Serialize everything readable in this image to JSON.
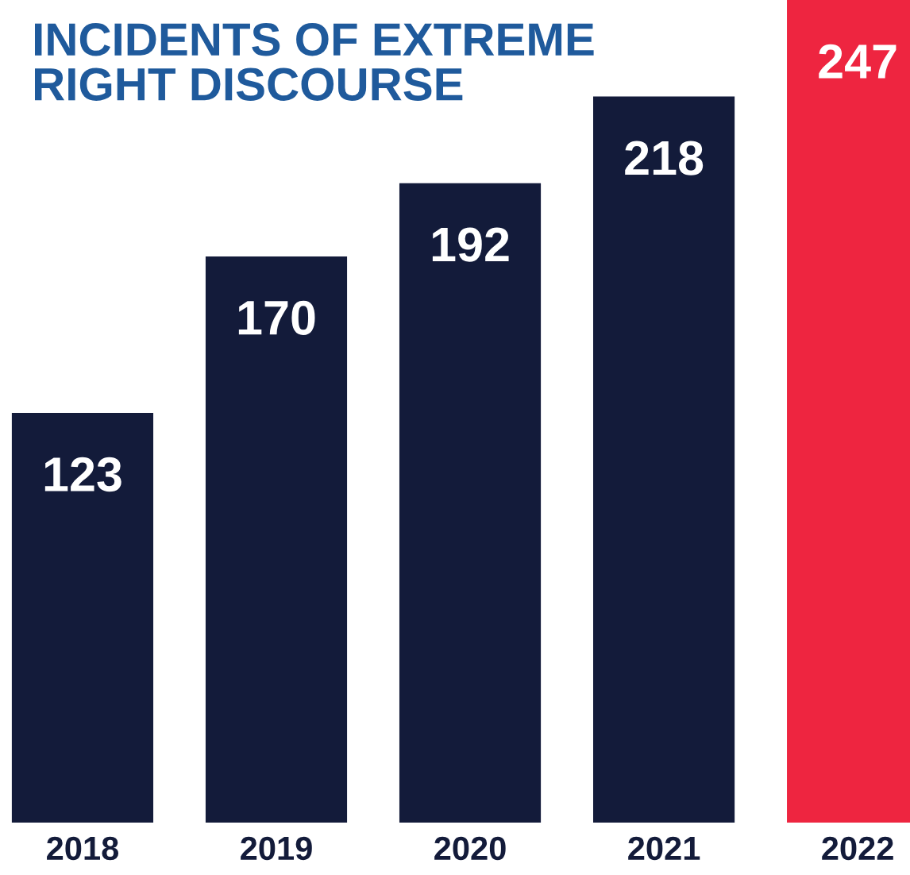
{
  "chart_data": {
    "type": "bar",
    "title": "INCIDENTS OF EXTREME\nRIGHT DISCOURSE",
    "categories": [
      "2018",
      "2019",
      "2020",
      "2021",
      "2022"
    ],
    "values": [
      123,
      170,
      192,
      218,
      247
    ],
    "colors": [
      "#131b3a",
      "#131b3a",
      "#131b3a",
      "#131b3a",
      "#ee2540"
    ],
    "data_labels": true
  }
}
